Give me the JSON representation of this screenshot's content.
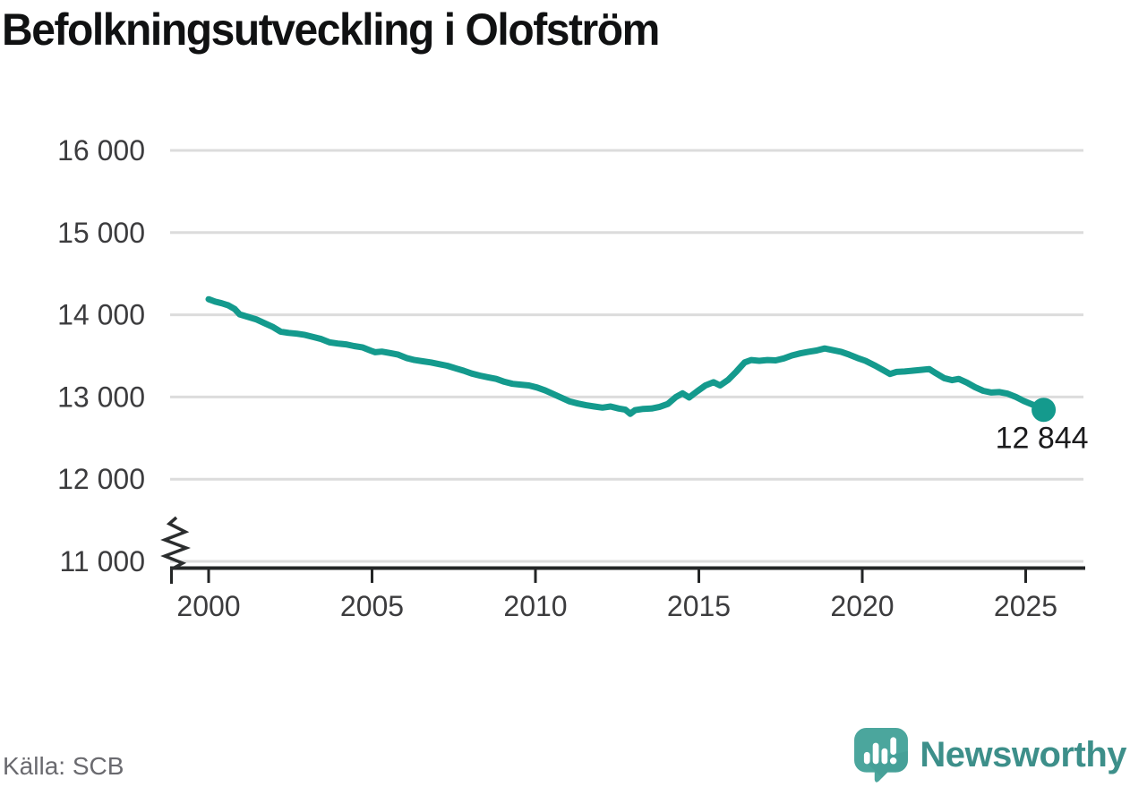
{
  "title": "Befolkningsutveckling i Olofström",
  "source": "Källa: SCB",
  "branding": {
    "name": "Newsworthy",
    "text_color": "#3d8f8a",
    "icon_color": "#4ba69d",
    "icon_shade_color": "#3f968e"
  },
  "chart_data": {
    "type": "line",
    "title": "Befolkningsutveckling i Olofström",
    "xlabel": "",
    "ylabel": "",
    "grid": true,
    "axis_break": true,
    "xlim": [
      1998.8,
      2027.8
    ],
    "ylim": [
      11000,
      16500
    ],
    "x_ticks": [
      2000,
      2005,
      2010,
      2015,
      2020,
      2025
    ],
    "x_tick_labels": [
      "2000",
      "2005",
      "2010",
      "2015",
      "2020",
      "2025"
    ],
    "y_ticks": [
      11000,
      12000,
      13000,
      14000,
      15000,
      16000
    ],
    "y_tick_labels": [
      "11 000",
      "12 000",
      "13 000",
      "14 000",
      "15 000",
      "16 000"
    ],
    "end_label": "12 844",
    "end_value": 12844,
    "colors": {
      "line": "#149a8d",
      "grid": "#dcdcdc",
      "axis": "#232526",
      "tick_text": "#3c3c3e",
      "end_label_text": "#1b1b1d"
    },
    "series": [
      {
        "name": "befolkning",
        "color": "#149a8d",
        "points": [
          [
            2000.0,
            14190
          ],
          [
            2000.2,
            14160
          ],
          [
            2000.4,
            14140
          ],
          [
            2000.6,
            14115
          ],
          [
            2000.8,
            14070
          ],
          [
            2000.95,
            14005
          ],
          [
            2001.2,
            13975
          ],
          [
            2001.45,
            13945
          ],
          [
            2001.7,
            13900
          ],
          [
            2001.95,
            13855
          ],
          [
            2002.2,
            13795
          ],
          [
            2002.45,
            13780
          ],
          [
            2002.7,
            13770
          ],
          [
            2002.95,
            13755
          ],
          [
            2003.2,
            13730
          ],
          [
            2003.45,
            13705
          ],
          [
            2003.7,
            13665
          ],
          [
            2003.95,
            13650
          ],
          [
            2004.2,
            13640
          ],
          [
            2004.45,
            13620
          ],
          [
            2004.7,
            13605
          ],
          [
            2004.95,
            13565
          ],
          [
            2005.1,
            13545
          ],
          [
            2005.3,
            13552
          ],
          [
            2005.55,
            13535
          ],
          [
            2005.8,
            13515
          ],
          [
            2006.05,
            13475
          ],
          [
            2006.3,
            13450
          ],
          [
            2006.55,
            13435
          ],
          [
            2006.8,
            13420
          ],
          [
            2007.05,
            13400
          ],
          [
            2007.3,
            13380
          ],
          [
            2007.55,
            13350
          ],
          [
            2007.8,
            13320
          ],
          [
            2008.05,
            13285
          ],
          [
            2008.3,
            13260
          ],
          [
            2008.55,
            13240
          ],
          [
            2008.8,
            13220
          ],
          [
            2009.05,
            13185
          ],
          [
            2009.3,
            13160
          ],
          [
            2009.55,
            13150
          ],
          [
            2009.8,
            13140
          ],
          [
            2010.05,
            13115
          ],
          [
            2010.3,
            13080
          ],
          [
            2010.55,
            13035
          ],
          [
            2010.8,
            12990
          ],
          [
            2011.05,
            12945
          ],
          [
            2011.3,
            12920
          ],
          [
            2011.55,
            12900
          ],
          [
            2011.8,
            12885
          ],
          [
            2012.05,
            12870
          ],
          [
            2012.3,
            12885
          ],
          [
            2012.55,
            12860
          ],
          [
            2012.75,
            12845
          ],
          [
            2012.9,
            12795
          ],
          [
            2013.05,
            12840
          ],
          [
            2013.3,
            12855
          ],
          [
            2013.55,
            12860
          ],
          [
            2013.8,
            12880
          ],
          [
            2014.05,
            12915
          ],
          [
            2014.3,
            13000
          ],
          [
            2014.5,
            13045
          ],
          [
            2014.7,
            12995
          ],
          [
            2014.95,
            13070
          ],
          [
            2015.2,
            13140
          ],
          [
            2015.45,
            13180
          ],
          [
            2015.65,
            13140
          ],
          [
            2015.9,
            13210
          ],
          [
            2016.15,
            13310
          ],
          [
            2016.4,
            13420
          ],
          [
            2016.6,
            13450
          ],
          [
            2016.85,
            13440
          ],
          [
            2017.1,
            13450
          ],
          [
            2017.35,
            13445
          ],
          [
            2017.6,
            13470
          ],
          [
            2017.85,
            13505
          ],
          [
            2018.1,
            13530
          ],
          [
            2018.35,
            13550
          ],
          [
            2018.6,
            13565
          ],
          [
            2018.85,
            13590
          ],
          [
            2019.1,
            13570
          ],
          [
            2019.35,
            13550
          ],
          [
            2019.6,
            13515
          ],
          [
            2019.85,
            13475
          ],
          [
            2020.1,
            13440
          ],
          [
            2020.4,
            13380
          ],
          [
            2020.65,
            13325
          ],
          [
            2020.85,
            13280
          ],
          [
            2021.05,
            13305
          ],
          [
            2021.3,
            13310
          ],
          [
            2021.55,
            13320
          ],
          [
            2021.8,
            13330
          ],
          [
            2022.05,
            13340
          ],
          [
            2022.25,
            13290
          ],
          [
            2022.5,
            13230
          ],
          [
            2022.75,
            13205
          ],
          [
            2022.95,
            13220
          ],
          [
            2023.2,
            13175
          ],
          [
            2023.45,
            13120
          ],
          [
            2023.7,
            13075
          ],
          [
            2023.95,
            13055
          ],
          [
            2024.2,
            13060
          ],
          [
            2024.45,
            13040
          ],
          [
            2024.7,
            13000
          ],
          [
            2024.95,
            12950
          ],
          [
            2025.2,
            12910
          ],
          [
            2025.4,
            12875
          ],
          [
            2025.55,
            12844
          ]
        ]
      }
    ]
  }
}
